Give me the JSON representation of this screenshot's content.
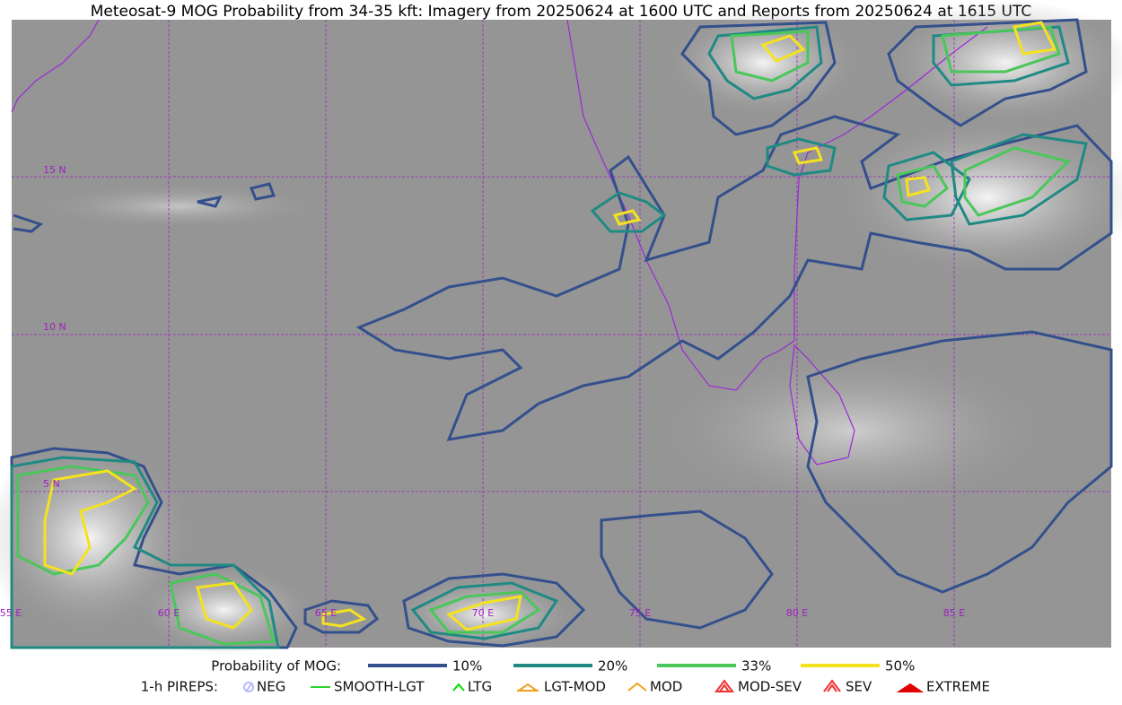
{
  "header": {
    "title": "Meteosat-9 MOG Probability from 34-35 kft: Imagery from 20250624 at 1600 UTC and Reports from 20250624 at 1615 UTC"
  },
  "map": {
    "lat_labels": [
      "15 N",
      "10 N",
      "5 N"
    ],
    "lon_labels": [
      "55 E",
      "60 E",
      "65 E",
      "70 E",
      "75 E",
      "80 E",
      "85 E"
    ]
  },
  "legend": {
    "probability": {
      "title": "Probability of MOG:",
      "levels": [
        {
          "label": "10%",
          "color": "#34508c"
        },
        {
          "label": "20%",
          "color": "#1f8a83"
        },
        {
          "label": "33%",
          "color": "#4ac75a"
        },
        {
          "label": "50%",
          "color": "#f5e21f"
        }
      ]
    },
    "pireps": {
      "title": "1-h PIREPS:",
      "items": [
        {
          "label": "NEG",
          "color": "#b8b8ff"
        },
        {
          "label": "SMOOTH-LGT",
          "color": "#2bd62b"
        },
        {
          "label": "LTG",
          "color": "#00e000"
        },
        {
          "label": "LGT-MOD",
          "color": "#f0a020"
        },
        {
          "label": "MOD",
          "color": "#f0a020"
        },
        {
          "label": "MOD-SEV",
          "color": "#f03030"
        },
        {
          "label": "SEV",
          "color": "#f03030"
        },
        {
          "label": "EXTREME",
          "color": "#e00000"
        }
      ]
    }
  }
}
